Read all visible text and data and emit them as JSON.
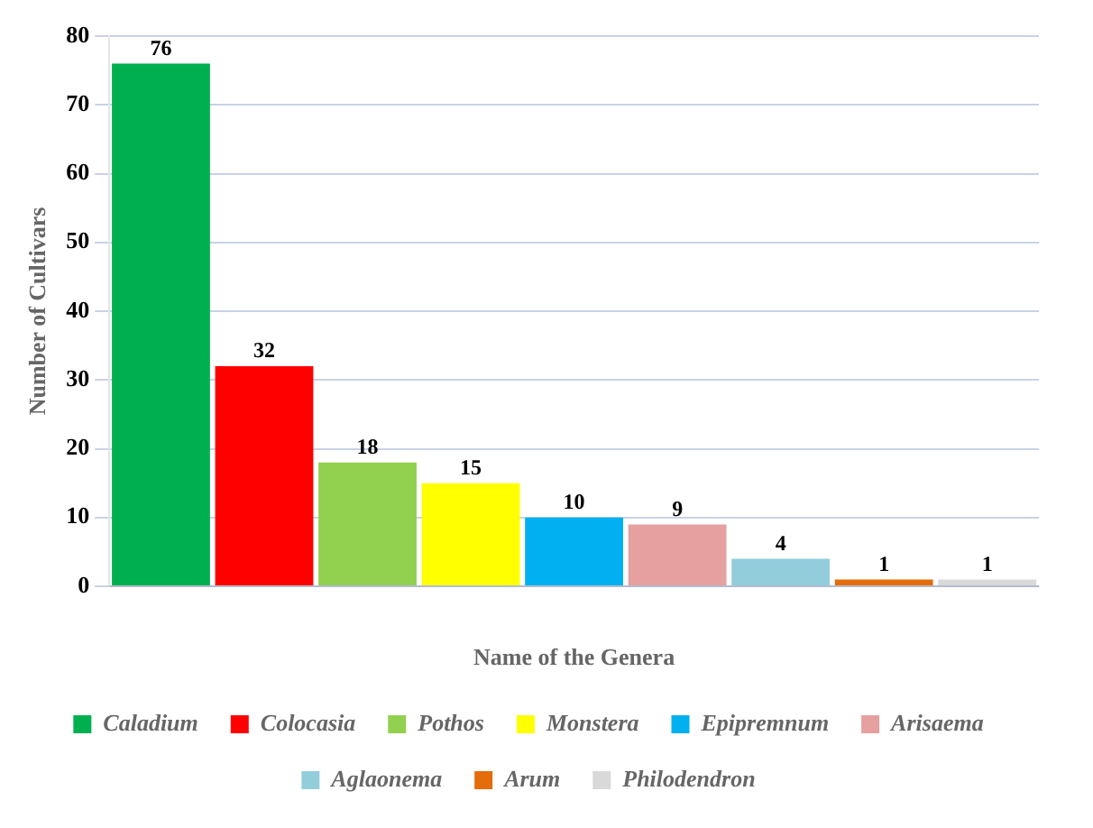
{
  "chart_data": {
    "type": "bar",
    "xlabel": "Name of the Genera",
    "ylabel": "Number of Cultivars",
    "categories": [
      null,
      null,
      null,
      null,
      null,
      null,
      null,
      null,
      null
    ],
    "series": [
      {
        "name": "Caladium",
        "color": "#00b050",
        "values": [
          76,
          null,
          null,
          null,
          null,
          null,
          null,
          null,
          null
        ]
      },
      {
        "name": "Colocasia",
        "color": "#ff0000",
        "values": [
          null,
          32,
          null,
          null,
          null,
          null,
          null,
          null,
          null
        ]
      },
      {
        "name": "Pothos",
        "color": "#92d050",
        "values": [
          null,
          null,
          18,
          null,
          null,
          null,
          null,
          null,
          null
        ]
      },
      {
        "name": "Monstera",
        "color": "#ffff00",
        "values": [
          null,
          null,
          null,
          15,
          null,
          null,
          null,
          null,
          null
        ]
      },
      {
        "name": "Epipremnum",
        "color": "#00b0f0",
        "values": [
          null,
          null,
          null,
          null,
          10,
          null,
          null,
          null,
          null
        ]
      },
      {
        "name": "Arisaema",
        "color": "#e6a0a0",
        "values": [
          null,
          null,
          null,
          null,
          null,
          9,
          null,
          null,
          null
        ]
      },
      {
        "name": "Aglaonema",
        "color": "#92cddc",
        "values": [
          null,
          null,
          null,
          null,
          null,
          null,
          4,
          null,
          null
        ]
      },
      {
        "name": "Arum",
        "color": "#e46c0a",
        "values": [
          null,
          null,
          null,
          null,
          null,
          null,
          null,
          1,
          null
        ]
      },
      {
        "name": "Philodendron",
        "color": "#d9d9d9",
        "values": [
          null,
          null,
          null,
          null,
          null,
          null,
          null,
          null,
          1
        ]
      }
    ],
    "ylim": [
      0,
      80
    ],
    "yticks": [
      0,
      10,
      20,
      30,
      40,
      50,
      60,
      70,
      80
    ],
    "grid": "y",
    "legend": "bottom",
    "data_labels": true
  }
}
